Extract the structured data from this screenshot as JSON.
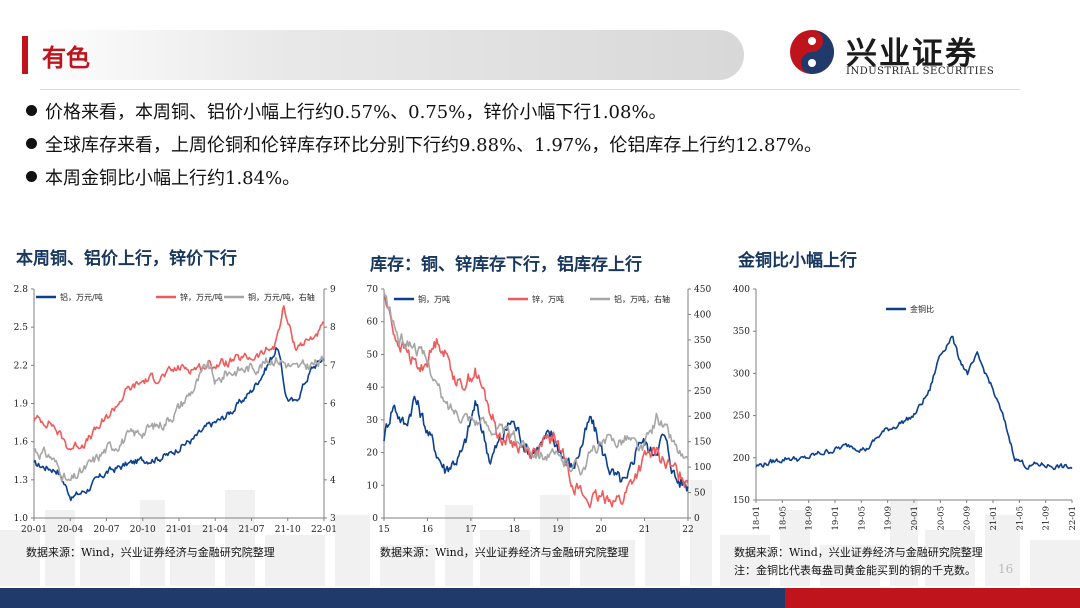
{
  "header": {
    "title": "有色"
  },
  "logo": {
    "cn": "兴业证券",
    "en": "INDUSTRIAL SECURITIES"
  },
  "bullets": [
    "价格来看，本周铜、铝价小幅上行约0.57%、0.75%，锌价小幅下行1.08%。",
    "全球库存来看，上周伦铜和伦锌库存环比分别下行约9.88%、1.97%，伦铝库存上行约12.87%。",
    "本周金铜比小幅上行约1.84%。"
  ],
  "charts": [
    {
      "heading": "本周铜、铝价上行，锌价下行",
      "source": "数据来源：Wind，兴业证券经济与金融研究院整理",
      "legend": [
        "铝，万元/吨",
        "锌，万元/吨",
        "铜，万元/吨，右轴"
      ]
    },
    {
      "heading": "库存：铜、锌库存下行，铝库存上行",
      "source": "数据来源：Wind，兴业证券经济与金融研究院整理",
      "legend": [
        "铜，万吨",
        "锌，万吨",
        "铝，万吨，右轴"
      ]
    },
    {
      "heading": "金铜比小幅上行",
      "source": "数据来源：Wind，兴业证券经济与金融研究院整理",
      "note": "注：金铜比代表每盎司黄金能买到的铜的千克数。",
      "legend": [
        "金铜比"
      ]
    }
  ],
  "page_number": "16",
  "colors": {
    "red": "#c0141c",
    "navy": "#1f3a6b",
    "blue": "#0b3f8f",
    "salmon": "#ef5b5b",
    "gray": "#a6a6a6"
  },
  "chart_data": [
    {
      "type": "line",
      "x_ticks": [
        "20-01",
        "20-04",
        "20-07",
        "20-10",
        "21-01",
        "21-04",
        "21-07",
        "21-10",
        "22-01"
      ],
      "y_left": {
        "ticks": [
          "1.0",
          "1.3",
          "1.6",
          "1.9",
          "2.2",
          "2.5",
          "2.8"
        ],
        "ylim": [
          1.0,
          2.8
        ]
      },
      "y_right": {
        "ticks": [
          "3",
          "4",
          "5",
          "6",
          "7",
          "8",
          "9"
        ],
        "ylim": [
          3,
          9
        ]
      },
      "series": [
        {
          "name": "铝，万元/吨",
          "axis": "left",
          "color": "#0b3f8f",
          "x": [
            0,
            0.08,
            0.13,
            0.18,
            0.25,
            0.32,
            0.38,
            0.42,
            0.47,
            0.5,
            0.55,
            0.6,
            0.65,
            0.7,
            0.75,
            0.8,
            0.84,
            0.87,
            0.9,
            0.93,
            0.96,
            1
          ],
          "y": [
            1.42,
            1.38,
            1.16,
            1.22,
            1.36,
            1.42,
            1.46,
            1.47,
            1.5,
            1.56,
            1.62,
            1.72,
            1.78,
            1.88,
            2.0,
            2.18,
            2.35,
            1.95,
            1.9,
            2.05,
            2.18,
            2.26
          ]
        },
        {
          "name": "锌，万元/吨",
          "axis": "left",
          "color": "#ef5b5b",
          "x": [
            0,
            0.06,
            0.12,
            0.18,
            0.25,
            0.32,
            0.38,
            0.45,
            0.5,
            0.55,
            0.6,
            0.66,
            0.72,
            0.78,
            0.83,
            0.86,
            0.9,
            0.95,
            1
          ],
          "y": [
            1.78,
            1.75,
            1.55,
            1.6,
            1.78,
            2.0,
            2.08,
            2.12,
            2.18,
            2.18,
            2.2,
            2.22,
            2.25,
            2.28,
            2.35,
            2.65,
            2.35,
            2.4,
            2.5
          ]
        },
        {
          "name": "铜，万元/吨，右轴",
          "axis": "right",
          "color": "#a6a6a6",
          "x": [
            0,
            0.06,
            0.12,
            0.18,
            0.25,
            0.32,
            0.38,
            0.45,
            0.5,
            0.55,
            0.6,
            0.63,
            0.66,
            0.72,
            0.78,
            0.83,
            0.86,
            0.9,
            0.95,
            1
          ],
          "y": [
            4.8,
            4.6,
            3.9,
            4.3,
            4.8,
            5.1,
            5.3,
            5.5,
            5.9,
            6.4,
            7.0,
            6.5,
            6.8,
            6.9,
            7.0,
            7.2,
            7.1,
            6.9,
            7.0,
            7.1
          ]
        }
      ]
    },
    {
      "type": "line",
      "x_ticks": [
        "15",
        "16",
        "17",
        "18",
        "19",
        "20",
        "21",
        "22"
      ],
      "y_left": {
        "ticks": [
          "0",
          "10",
          "20",
          "30",
          "40",
          "50",
          "60",
          "70"
        ],
        "ylim": [
          0,
          70
        ]
      },
      "y_right": {
        "ticks": [
          "0",
          "50",
          "100",
          "150",
          "200",
          "250",
          "300",
          "350",
          "400",
          "450"
        ],
        "ylim": [
          0,
          450
        ]
      },
      "series": [
        {
          "name": "铜，万吨",
          "axis": "left",
          "color": "#0b3f8f",
          "x": [
            0,
            0.03,
            0.07,
            0.1,
            0.15,
            0.2,
            0.26,
            0.3,
            0.35,
            0.42,
            0.48,
            0.55,
            0.62,
            0.68,
            0.72,
            0.76,
            0.8,
            0.84,
            0.88,
            0.92,
            0.96,
            1
          ],
          "y": [
            25,
            35,
            28,
            37,
            25,
            15,
            20,
            35,
            18,
            30,
            20,
            25,
            15,
            30,
            20,
            12,
            10,
            25,
            20,
            25,
            12,
            10
          ]
        },
        {
          "name": "锌，万吨",
          "axis": "left",
          "color": "#ef5b5b",
          "x": [
            0,
            0.04,
            0.08,
            0.12,
            0.18,
            0.25,
            0.3,
            0.38,
            0.45,
            0.5,
            0.56,
            0.62,
            0.66,
            0.7,
            0.74,
            0.78,
            0.82,
            0.86,
            0.9,
            0.94,
            1
          ],
          "y": [
            68,
            55,
            50,
            45,
            55,
            40,
            45,
            25,
            22,
            20,
            25,
            12,
            6,
            5,
            7,
            5,
            12,
            18,
            20,
            15,
            12
          ]
        },
        {
          "name": "铝，万吨，右轴",
          "axis": "right",
          "color": "#a6a6a6",
          "x": [
            0,
            0.05,
            0.1,
            0.15,
            0.2,
            0.28,
            0.35,
            0.42,
            0.48,
            0.55,
            0.6,
            0.65,
            0.7,
            0.75,
            0.8,
            0.85,
            0.9,
            0.95,
            1
          ],
          "y": [
            440,
            350,
            340,
            300,
            220,
            200,
            180,
            160,
            140,
            120,
            110,
            100,
            140,
            150,
            160,
            130,
            200,
            150,
            100
          ]
        }
      ]
    },
    {
      "type": "line",
      "x_ticks": [
        "18-01",
        "18-05",
        "18-09",
        "19-01",
        "19-05",
        "19-09",
        "20-01",
        "20-05",
        "20-09",
        "21-01",
        "21-05",
        "21-09",
        "22-01"
      ],
      "y_left": {
        "ticks": [
          "150",
          "200",
          "250",
          "300",
          "350",
          "400"
        ],
        "ylim": [
          150,
          400
        ]
      },
      "series": [
        {
          "name": "金铜比",
          "axis": "left",
          "color": "#0b3f8f",
          "x": [
            0,
            0.05,
            0.1,
            0.15,
            0.2,
            0.25,
            0.3,
            0.35,
            0.4,
            0.45,
            0.5,
            0.55,
            0.58,
            0.62,
            0.64,
            0.67,
            0.7,
            0.74,
            0.78,
            0.82,
            0.86,
            0.9,
            0.95,
            1
          ],
          "y": [
            190,
            195,
            200,
            198,
            205,
            210,
            215,
            210,
            230,
            240,
            250,
            280,
            320,
            345,
            320,
            300,
            320,
            290,
            250,
            200,
            190,
            192,
            190,
            188
          ]
        }
      ]
    }
  ]
}
